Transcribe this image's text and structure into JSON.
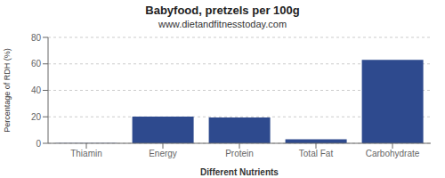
{
  "chart_data": {
    "type": "bar",
    "title": "Babyfood, pretzels per 100g",
    "subtitle": "www.dietandfitnesstoday.com",
    "categories": [
      "Thiamin",
      "Energy",
      "Protein",
      "Total Fat",
      "Carbohydrate"
    ],
    "values": [
      0.2,
      20.2,
      19.5,
      3.0,
      63.0
    ],
    "color": "#2e4a8e",
    "xlabel": "Different Nutrients",
    "ylabel": "Percentage of RDH (%)",
    "ylim": [
      0,
      80
    ],
    "yticks": [
      0,
      20,
      40,
      60,
      80
    ],
    "grid": true
  }
}
